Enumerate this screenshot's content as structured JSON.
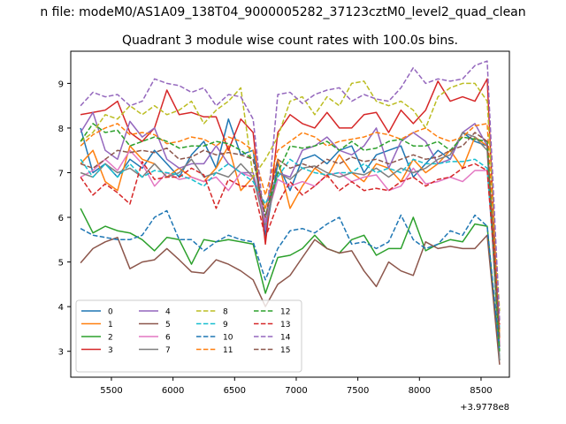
{
  "chart_data": {
    "type": "line",
    "suptitle": "n file: modeM0/AS1A09_138T04_9000005282_37123cztM0_level2_quad_clean",
    "title": "Quadrant 3 module wise count rates with 100.0s bins.",
    "xlabel": "",
    "ylabel": "",
    "x_offset_label": "+3.9778e8",
    "x_tick_labels": [
      "5500",
      "6000",
      "6500",
      "7000",
      "7500",
      "8000",
      "8500"
    ],
    "y_tick_labels": [
      "3",
      "4",
      "5",
      "6",
      "7",
      "8",
      "9"
    ],
    "xlim": [
      397785170,
      397788730
    ],
    "ylim": [
      2.42,
      9.72
    ],
    "grid": false,
    "legend_placement": "lower-left",
    "x": [
      397785250,
      397785350,
      397785450,
      397785550,
      397785650,
      397785750,
      397785850,
      397785950,
      397786050,
      397786150,
      397786250,
      397786350,
      397786450,
      397786550,
      397786650,
      397786750,
      397786850,
      397786950,
      397787050,
      397787150,
      397787250,
      397787350,
      397787450,
      397787550,
      397787650,
      397787750,
      397787850,
      397787950,
      397788050,
      397788150,
      397788250,
      397788350,
      397788450,
      397788550,
      397788650
    ],
    "series": [
      {
        "name": "0",
        "color": "#1f77b4",
        "dash": "solid",
        "values": [
          8.0,
          7.0,
          7.2,
          6.9,
          7.3,
          7.1,
          7.5,
          7.2,
          6.9,
          7.4,
          7.7,
          7.1,
          8.2,
          7.4,
          7.5,
          5.6,
          7.2,
          6.6,
          7.3,
          7.4,
          7.2,
          7.5,
          7.6,
          7.0,
          7.4,
          7.5,
          7.6,
          6.9,
          7.2,
          7.5,
          7.3,
          7.9,
          7.7,
          7.6,
          2.8
        ]
      },
      {
        "name": "1",
        "color": "#ff7f0e",
        "dash": "solid",
        "values": [
          7.2,
          7.5,
          6.8,
          6.6,
          7.6,
          7.3,
          7.2,
          6.9,
          7.1,
          6.9,
          6.8,
          7.1,
          7.6,
          6.6,
          6.9,
          6.2,
          7.3,
          6.2,
          6.7,
          7.1,
          6.9,
          7.4,
          7.0,
          6.8,
          7.2,
          7.1,
          6.8,
          7.3,
          7.0,
          7.2,
          7.5,
          7.1,
          7.8,
          7.6,
          3.3
        ]
      },
      {
        "name": "2",
        "color": "#2ca02c",
        "dash": "solid",
        "values": [
          6.2,
          5.65,
          5.8,
          5.7,
          5.65,
          5.5,
          5.25,
          5.55,
          5.5,
          4.95,
          5.5,
          5.45,
          5.5,
          5.45,
          5.4,
          4.3,
          5.1,
          5.15,
          5.3,
          5.6,
          5.3,
          5.2,
          5.5,
          5.6,
          5.15,
          5.3,
          5.3,
          6.0,
          5.25,
          5.4,
          5.5,
          5.45,
          5.85,
          5.8,
          2.8
        ]
      },
      {
        "name": "3",
        "color": "#d62728",
        "dash": "solid",
        "values": [
          8.3,
          8.35,
          8.4,
          8.6,
          7.9,
          7.7,
          8.0,
          8.85,
          8.3,
          8.35,
          8.25,
          8.25,
          7.5,
          8.2,
          7.9,
          5.4,
          7.9,
          8.3,
          8.1,
          8.0,
          8.35,
          8.0,
          8.0,
          8.3,
          8.35,
          7.9,
          8.4,
          8.1,
          8.4,
          9.05,
          8.6,
          8.7,
          8.6,
          9.1,
          3.1
        ]
      },
      {
        "name": "4",
        "color": "#9467bd",
        "dash": "solid",
        "values": [
          7.9,
          8.35,
          7.5,
          7.3,
          8.15,
          7.8,
          8.0,
          7.3,
          7.1,
          7.2,
          7.2,
          7.6,
          7.2,
          7.0,
          7.0,
          5.9,
          7.0,
          6.9,
          7.5,
          7.6,
          7.8,
          7.5,
          7.4,
          7.6,
          8.0,
          7.1,
          7.7,
          7.9,
          7.7,
          7.2,
          7.3,
          7.9,
          8.1,
          7.6,
          3.1
        ]
      },
      {
        "name": "5",
        "color": "#8c564b",
        "dash": "solid",
        "values": [
          4.98,
          5.3,
          5.45,
          5.55,
          4.85,
          5.0,
          5.05,
          5.3,
          5.05,
          4.78,
          4.75,
          5.05,
          4.95,
          4.8,
          4.6,
          4.0,
          4.5,
          4.7,
          5.1,
          5.5,
          5.3,
          5.2,
          5.25,
          4.8,
          4.45,
          5.0,
          4.8,
          4.7,
          5.45,
          5.3,
          5.35,
          5.3,
          5.3,
          5.6,
          2.7
        ]
      },
      {
        "name": "6",
        "color": "#e377c2",
        "dash": "solid",
        "values": [
          6.9,
          7.05,
          7.3,
          7.05,
          7.5,
          7.2,
          6.7,
          7.0,
          6.85,
          6.9,
          6.8,
          6.9,
          6.6,
          7.0,
          6.9,
          5.9,
          6.85,
          6.7,
          6.8,
          6.7,
          6.95,
          7.0,
          6.8,
          6.9,
          6.95,
          6.6,
          6.7,
          7.1,
          6.75,
          6.8,
          6.9,
          6.8,
          7.05,
          7.05,
          3.5
        ]
      },
      {
        "name": "7",
        "color": "#7f7f7f",
        "dash": "solid",
        "values": [
          7.0,
          6.9,
          7.2,
          7.0,
          7.1,
          6.9,
          7.2,
          6.9,
          7.0,
          7.3,
          6.9,
          7.0,
          6.9,
          7.2,
          6.9,
          5.8,
          7.0,
          6.85,
          7.1,
          7.15,
          7.0,
          6.9,
          7.0,
          6.95,
          7.1,
          6.9,
          7.1,
          7.0,
          7.1,
          7.3,
          7.4,
          7.9,
          7.8,
          7.5,
          2.8
        ]
      },
      {
        "name": "8",
        "color": "#bcbd22",
        "dash": "dashed",
        "values": [
          7.7,
          7.9,
          8.3,
          8.2,
          8.5,
          8.3,
          8.5,
          8.3,
          8.4,
          8.6,
          8.1,
          8.4,
          8.6,
          8.9,
          6.9,
          7.3,
          7.8,
          8.6,
          8.7,
          8.3,
          8.7,
          8.5,
          9.0,
          9.05,
          8.6,
          8.5,
          8.6,
          8.4,
          8.0,
          8.7,
          8.9,
          9.0,
          9.0,
          8.6,
          3.9
        ]
      },
      {
        "name": "9",
        "color": "#17becf",
        "dash": "dashed",
        "values": [
          7.3,
          6.9,
          7.2,
          6.9,
          7.2,
          6.9,
          7.05,
          7.0,
          6.95,
          6.85,
          6.7,
          7.0,
          7.2,
          7.0,
          6.8,
          6.3,
          6.9,
          7.3,
          7.1,
          7.0,
          6.95,
          7.0,
          7.0,
          7.2,
          7.0,
          7.1,
          7.0,
          7.3,
          7.2,
          7.2,
          7.25,
          7.25,
          7.3,
          7.1,
          3.5
        ]
      },
      {
        "name": "10",
        "color": "#1f77b4",
        "dash": "dashed",
        "values": [
          5.75,
          5.6,
          5.55,
          5.5,
          5.5,
          5.6,
          6.0,
          6.15,
          5.5,
          5.5,
          5.25,
          5.45,
          5.6,
          5.5,
          5.45,
          4.6,
          5.3,
          5.7,
          5.75,
          5.65,
          5.85,
          6.0,
          5.4,
          5.45,
          5.3,
          5.45,
          6.05,
          5.5,
          5.3,
          5.4,
          5.7,
          5.6,
          6.05,
          5.8,
          3.0
        ]
      },
      {
        "name": "11",
        "color": "#ff7f0e",
        "dash": "dashed",
        "values": [
          7.6,
          7.85,
          8.0,
          8.1,
          7.85,
          7.9,
          7.85,
          7.65,
          7.7,
          7.8,
          7.75,
          7.6,
          7.8,
          7.7,
          7.5,
          6.5,
          7.5,
          7.7,
          7.9,
          7.8,
          7.6,
          7.7,
          7.75,
          7.8,
          7.9,
          7.85,
          7.75,
          7.9,
          8.0,
          7.8,
          7.7,
          7.8,
          8.05,
          8.1,
          3.4
        ]
      },
      {
        "name": "12",
        "color": "#2ca02c",
        "dash": "dashed",
        "values": [
          7.7,
          8.1,
          7.9,
          7.95,
          7.6,
          7.7,
          7.8,
          7.7,
          7.55,
          7.6,
          7.6,
          7.7,
          7.65,
          7.5,
          7.3,
          6.05,
          7.0,
          7.6,
          7.55,
          7.6,
          7.7,
          7.5,
          7.7,
          7.5,
          7.55,
          7.7,
          7.75,
          7.6,
          7.6,
          7.7,
          7.5,
          7.8,
          7.75,
          7.7,
          3.0
        ]
      },
      {
        "name": "13",
        "color": "#d62728",
        "dash": "dashed",
        "values": [
          6.9,
          6.5,
          6.75,
          6.55,
          6.3,
          7.25,
          6.85,
          6.9,
          6.9,
          7.1,
          6.95,
          6.2,
          6.85,
          6.7,
          6.7,
          5.55,
          6.3,
          6.8,
          6.5,
          6.7,
          6.95,
          6.6,
          6.8,
          6.6,
          6.65,
          6.6,
          6.8,
          6.9,
          6.7,
          6.85,
          6.9,
          7.1,
          7.2,
          7.05,
          3.6
        ]
      },
      {
        "name": "14",
        "color": "#9467bd",
        "dash": "dashed",
        "values": [
          8.5,
          8.8,
          8.7,
          8.75,
          8.5,
          8.6,
          9.1,
          9.0,
          8.95,
          8.8,
          8.9,
          8.5,
          8.75,
          8.7,
          8.2,
          5.7,
          8.75,
          8.8,
          8.55,
          8.75,
          8.85,
          8.9,
          8.6,
          8.75,
          8.65,
          8.6,
          8.9,
          9.35,
          9.0,
          9.1,
          9.05,
          9.1,
          9.4,
          9.5,
          3.7
        ]
      },
      {
        "name": "15",
        "color": "#8c564b",
        "dash": "dashed",
        "values": [
          7.2,
          7.1,
          7.3,
          7.5,
          7.45,
          7.5,
          7.45,
          7.55,
          7.3,
          7.35,
          7.5,
          7.4,
          7.45,
          7.4,
          7.3,
          6.0,
          7.3,
          7.1,
          7.2,
          7.1,
          7.3,
          7.2,
          7.35,
          7.25,
          7.3,
          7.2,
          7.3,
          7.4,
          7.3,
          7.35,
          7.5,
          7.6,
          7.9,
          7.7,
          3.3
        ]
      }
    ]
  }
}
